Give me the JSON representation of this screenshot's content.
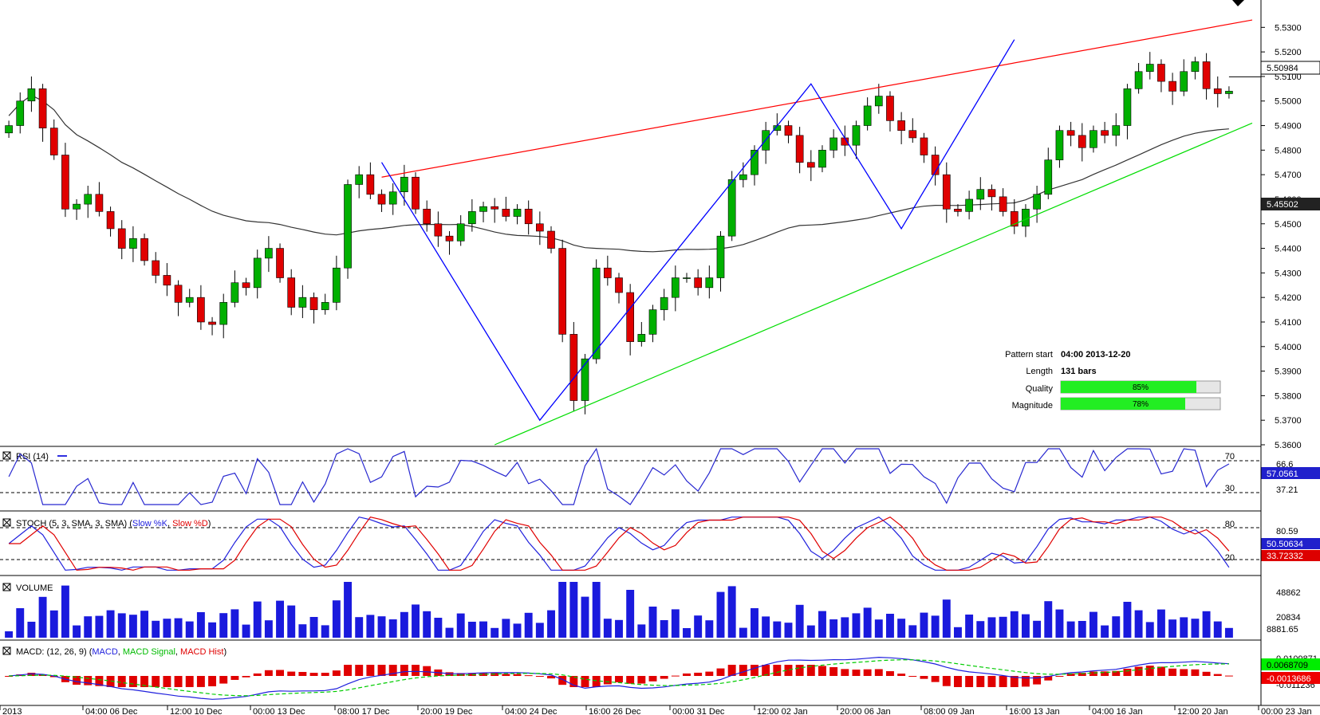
{
  "chart_data": [
    {
      "type": "candlestick",
      "panel": "price",
      "y_ticks": [
        "5.5300",
        "5.5200",
        "5.5100",
        "5.5000",
        "5.4900",
        "5.4800",
        "5.4700",
        "5.4600",
        "5.4500",
        "5.4400",
        "5.4300",
        "5.4200",
        "5.4100",
        "5.4000",
        "5.3900",
        "5.3800",
        "5.3700",
        "5.3600"
      ],
      "ylim": [
        5.36,
        5.534
      ],
      "current_price_label": "5.50984",
      "moving_average_label": "5.45502",
      "x_tick_labels": [
        "2013",
        "04:00 06 Dec",
        "12:00 10 Dec",
        "00:00 13 Dec",
        "08:00 17 Dec",
        "20:00 19 Dec",
        "04:00 24 Dec",
        "16:00 26 Dec",
        "00:00 31 Dec",
        "12:00 02 Jan",
        "20:00 06 Jan",
        "08:00 09 Jan",
        "16:00 13 Jan",
        "04:00 16 Jan",
        "12:00 20 Jan",
        "00:00 23 Jan"
      ],
      "close_series": [
        5.49,
        5.5,
        5.505,
        5.489,
        5.478,
        5.456,
        5.458,
        5.462,
        5.455,
        5.448,
        5.44,
        5.444,
        5.435,
        5.429,
        5.425,
        5.418,
        5.42,
        5.41,
        5.409,
        5.418,
        5.426,
        5.424,
        5.436,
        5.44,
        5.428,
        5.416,
        5.42,
        5.415,
        5.418,
        5.432,
        5.466,
        5.47,
        5.462,
        5.458,
        5.463,
        5.469,
        5.456,
        5.45,
        5.445,
        5.443,
        5.45,
        5.455,
        5.457,
        5.456,
        5.453,
        5.456,
        5.45,
        5.447,
        5.44,
        5.405,
        5.378,
        5.395,
        5.432,
        5.428,
        5.422,
        5.402,
        5.405,
        5.415,
        5.42,
        5.428,
        5.428,
        5.424,
        5.428,
        5.445,
        5.468,
        5.47,
        5.48,
        5.488,
        5.49,
        5.486,
        5.475,
        5.473,
        5.48,
        5.485,
        5.482,
        5.49,
        5.498,
        5.502,
        5.492,
        5.488,
        5.485,
        5.478,
        5.47,
        5.456,
        5.455,
        5.46,
        5.464,
        5.461,
        5.455,
        5.449,
        5.456,
        5.462,
        5.476,
        5.488,
        5.486,
        5.481,
        5.488,
        5.486,
        5.49,
        5.505,
        5.512,
        5.515,
        5.508,
        5.504,
        5.512,
        5.516,
        5.505,
        5.503,
        5.504
      ],
      "annotations": {
        "pattern_start_label": "Pattern start",
        "pattern_start_value": "04:00 2013-12-20",
        "length_label": "Length",
        "length_value": "131 bars",
        "quality_label": "Quality",
        "quality_value": 85,
        "quality_text": "85%",
        "magnitude_label": "Magnitude",
        "magnitude_value": 78,
        "magnitude_text": "78%"
      },
      "colors": {
        "up": "#00b000",
        "down": "#e00000",
        "resistance": "#ff0000",
        "support": "#00dd00",
        "zigzag": "#0000ff",
        "ma": "#333333"
      }
    },
    {
      "type": "line",
      "panel": "rsi",
      "title": "RSI (14)",
      "levels": [
        "70",
        "30"
      ],
      "right_labels": [
        "66.6",
        "37.21"
      ],
      "current_label": "57.0561"
    },
    {
      "type": "line",
      "panel": "stoch",
      "title_prefix": "STOCH (5, 3, SMA, 3, SMA)",
      "series_names": [
        "Slow %K",
        "Slow %D"
      ],
      "levels": [
        "80",
        "20"
      ],
      "right_labels": [
        "80.59"
      ],
      "current_k_label": "50.50634",
      "current_d_label": "33.72332"
    },
    {
      "type": "bar",
      "panel": "volume",
      "title": "VOLUME",
      "y_ticks": [
        "48862",
        "20834"
      ],
      "current_label": "8881.65"
    },
    {
      "type": "line",
      "panel": "macd",
      "title_prefix": "MACD: (12, 26, 9)",
      "series_names": [
        "MACD",
        "MACD Signal",
        "MACD Hist"
      ],
      "right_labels": [
        "0.0109871",
        "-0.011236"
      ],
      "current_macd_label": "0.0068709",
      "current_hist_label": "-0.0013686"
    }
  ]
}
